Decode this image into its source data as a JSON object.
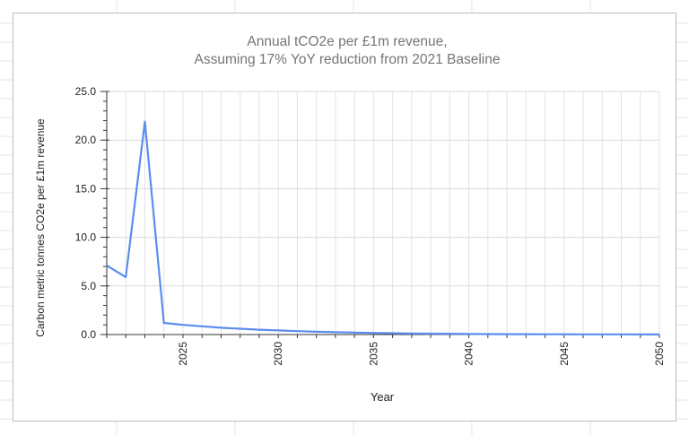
{
  "chart_data": {
    "type": "line",
    "title": "Annual tCO2e per £1m revenue,",
    "subtitle": "Assuming 17% YoY reduction from 2021 Baseline",
    "xlabel": "Year",
    "ylabel": "Carbon metric tonnes CO2e per £1m revenue",
    "xlim": [
      2021,
      2050
    ],
    "ylim": [
      0,
      25
    ],
    "y_ticks": [
      "0.0",
      "5.0",
      "10.0",
      "15.0",
      "20.0",
      "25.0"
    ],
    "x_ticks": [
      "2025",
      "2030",
      "2035",
      "2040",
      "2045",
      "2050"
    ],
    "grid": true,
    "line_color": "#5b8def",
    "series": [
      {
        "x": [
          2021,
          2022,
          2023,
          2024,
          2025,
          2026,
          2027,
          2028,
          2029,
          2030,
          2031,
          2032,
          2033,
          2034,
          2035,
          2036,
          2037,
          2038,
          2039,
          2040,
          2041,
          2042,
          2043,
          2044,
          2045,
          2046,
          2047,
          2048,
          2049,
          2050
        ],
        "values": [
          7.1,
          5.9,
          21.9,
          1.2,
          1.0,
          0.85,
          0.7,
          0.6,
          0.5,
          0.42,
          0.35,
          0.29,
          0.24,
          0.2,
          0.17,
          0.14,
          0.11,
          0.09,
          0.08,
          0.06,
          0.05,
          0.04,
          0.04,
          0.03,
          0.03,
          0.02,
          0.02,
          0.02,
          0.01,
          0.01
        ]
      }
    ]
  }
}
